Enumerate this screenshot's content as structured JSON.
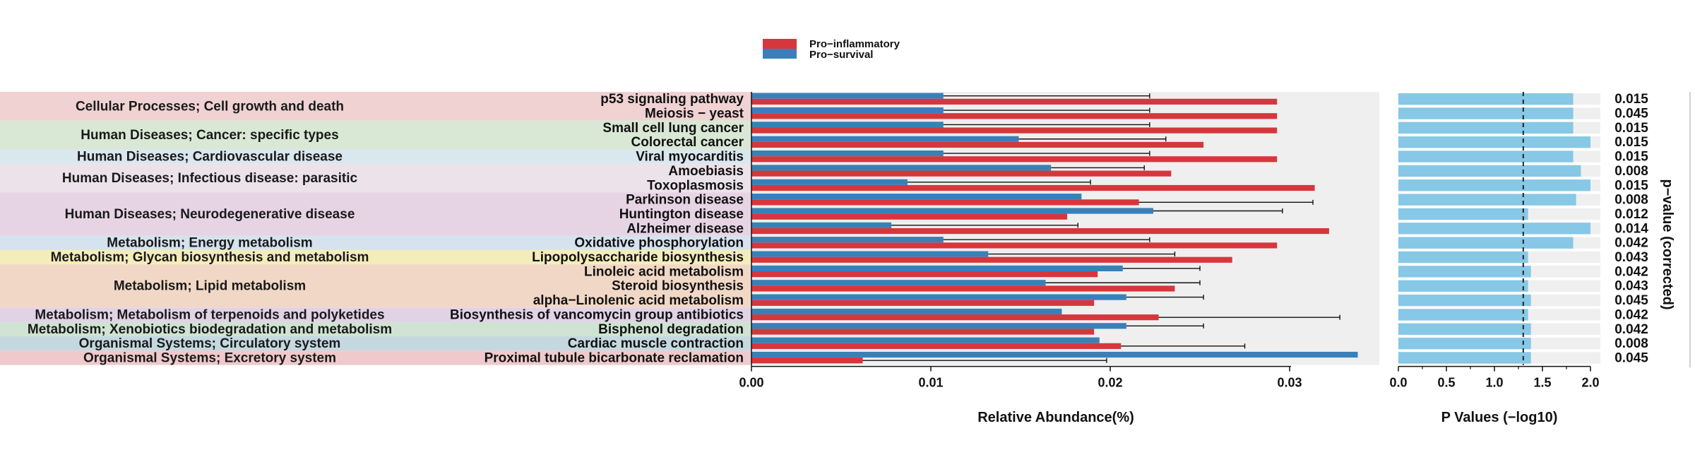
{
  "chart_data": {
    "type": "bar",
    "legend": {
      "placement": "top-center",
      "entries": [
        {
          "name": "Pro−inflammatory",
          "color": "#d6373c"
        },
        {
          "name": "Pro−survival",
          "color": "#3a80b8"
        }
      ]
    },
    "colors": {
      "pro_inflammatory": "#d6373c",
      "pro_survival": "#3a80b8",
      "pvalue_bar": "#86c8e6",
      "panel_background": "#efefef"
    },
    "abundance_axis": {
      "title": "Relative Abundance(%)",
      "range": [
        0,
        0.035
      ],
      "ticks": [
        "0.00",
        "0.01",
        "0.02",
        "0.03"
      ],
      "tick_values": [
        0,
        0.01,
        0.02,
        0.03
      ]
    },
    "pvalue_axis": {
      "title": "P Values (−log10)",
      "range": [
        0,
        2.0
      ],
      "ticks": [
        "0.0",
        "0.5",
        "1.0",
        "1.5",
        "2.0"
      ],
      "tick_values": [
        0,
        0.5,
        1.0,
        1.5,
        2.0
      ],
      "threshold": 1.3
    },
    "right_label": "p−value (corrected)",
    "categories": [
      {
        "name": "Cellular Processes; Cell growth and death",
        "color": "#f0d2d3",
        "rows": [
          0,
          1
        ]
      },
      {
        "name": "Human Diseases; Cancer: specific types",
        "color": "#d9e8d4",
        "rows": [
          2,
          3
        ]
      },
      {
        "name": "Human Diseases; Cardiovascular disease",
        "color": "#d9e7ee",
        "rows": [
          4
        ]
      },
      {
        "name": "Human Diseases; Infectious disease: parasitic",
        "color": "#ece2ea",
        "rows": [
          5,
          6
        ]
      },
      {
        "name": "Human Diseases; Neurodegenerative disease",
        "color": "#e6d4e5",
        "rows": [
          7,
          8,
          9
        ]
      },
      {
        "name": "Metabolism; Energy metabolism",
        "color": "#d6e2ee",
        "rows": [
          10
        ]
      },
      {
        "name": "Metabolism; Glycan biosynthesis and metabolism",
        "color": "#f4edb9",
        "rows": [
          11
        ]
      },
      {
        "name": "Metabolism; Lipid metabolism",
        "color": "#f1d8c6",
        "rows": [
          12,
          13,
          14
        ]
      },
      {
        "name": "Metabolism; Metabolism of terpenoids and polyketides",
        "color": "#e2d2e6",
        "rows": [
          15
        ]
      },
      {
        "name": "Metabolism; Xenobiotics biodegradation and metabolism",
        "color": "#cfe3d2",
        "rows": [
          16
        ]
      },
      {
        "name": "Organismal Systems; Circulatory system",
        "color": "#c5d8e0",
        "rows": [
          17
        ]
      },
      {
        "name": "Organismal Systems; Excretory system",
        "color": "#efc9cc",
        "rows": [
          18
        ]
      }
    ],
    "pathways": [
      {
        "name": "p53 signaling pathway",
        "pro_inflammatory": 0.0293,
        "pro_survival": 0.0107,
        "error": 0.0115,
        "error_on": "pro_survival",
        "neglog10p": 1.82,
        "p_corrected": "0.015"
      },
      {
        "name": "Meiosis − yeast",
        "pro_inflammatory": 0.0293,
        "pro_survival": 0.0107,
        "error": 0.0115,
        "error_on": "pro_survival",
        "neglog10p": 1.82,
        "p_corrected": "0.045"
      },
      {
        "name": "Small cell lung cancer",
        "pro_inflammatory": 0.0293,
        "pro_survival": 0.0107,
        "error": 0.0115,
        "error_on": "pro_survival",
        "neglog10p": 1.82,
        "p_corrected": "0.015"
      },
      {
        "name": "Colorectal cancer",
        "pro_inflammatory": 0.0252,
        "pro_survival": 0.0149,
        "error": 0.0082,
        "error_on": "pro_survival",
        "neglog10p": 2.1,
        "p_corrected": "0.015"
      },
      {
        "name": "Viral myocarditis",
        "pro_inflammatory": 0.0293,
        "pro_survival": 0.0107,
        "error": 0.0115,
        "error_on": "pro_survival",
        "neglog10p": 1.82,
        "p_corrected": "0.015"
      },
      {
        "name": "Amoebiasis",
        "pro_inflammatory": 0.0234,
        "pro_survival": 0.0167,
        "error": 0.0052,
        "error_on": "pro_survival",
        "neglog10p": 1.9,
        "p_corrected": "0.008"
      },
      {
        "name": "Toxoplasmosis",
        "pro_inflammatory": 0.0314,
        "pro_survival": 0.0087,
        "error": 0.0102,
        "error_on": "pro_survival",
        "neglog10p": 2.1,
        "p_corrected": "0.015"
      },
      {
        "name": "Parkinson disease",
        "pro_inflammatory": 0.0216,
        "pro_survival": 0.0184,
        "error": 0.0097,
        "error_on": "pro_inflammatory",
        "neglog10p": 1.85,
        "p_corrected": "0.008"
      },
      {
        "name": "Huntington disease",
        "pro_inflammatory": 0.0176,
        "pro_survival": 0.0224,
        "error": 0.0072,
        "error_on": "pro_survival",
        "neglog10p": 1.35,
        "p_corrected": "0.012"
      },
      {
        "name": "Alzheimer disease",
        "pro_inflammatory": 0.0322,
        "pro_survival": 0.0078,
        "error": 0.0104,
        "error_on": "pro_survival",
        "neglog10p": 2.1,
        "p_corrected": "0.014"
      },
      {
        "name": "Oxidative phosphorylation",
        "pro_inflammatory": 0.0293,
        "pro_survival": 0.0107,
        "error": 0.0115,
        "error_on": "pro_survival",
        "neglog10p": 1.82,
        "p_corrected": "0.042"
      },
      {
        "name": "Lipopolysaccharide biosynthesis",
        "pro_inflammatory": 0.0268,
        "pro_survival": 0.0132,
        "error": 0.0104,
        "error_on": "pro_survival",
        "neglog10p": 1.35,
        "p_corrected": "0.043"
      },
      {
        "name": "Linoleic acid metabolism",
        "pro_inflammatory": 0.0193,
        "pro_survival": 0.0207,
        "error": 0.0043,
        "error_on": "pro_survival",
        "neglog10p": 1.38,
        "p_corrected": "0.042"
      },
      {
        "name": "Steroid biosynthesis",
        "pro_inflammatory": 0.0236,
        "pro_survival": 0.0164,
        "error": 0.0086,
        "error_on": "pro_survival",
        "neglog10p": 1.35,
        "p_corrected": "0.043"
      },
      {
        "name": "alpha−Linolenic acid metabolism",
        "pro_inflammatory": 0.0191,
        "pro_survival": 0.0209,
        "error": 0.0043,
        "error_on": "pro_survival",
        "neglog10p": 1.38,
        "p_corrected": "0.045"
      },
      {
        "name": "Biosynthesis of vancomycin group antibiotics",
        "pro_inflammatory": 0.0227,
        "pro_survival": 0.0173,
        "error": 0.0101,
        "error_on": "pro_inflammatory",
        "neglog10p": 1.35,
        "p_corrected": "0.042"
      },
      {
        "name": "Bisphenol degradation",
        "pro_inflammatory": 0.0191,
        "pro_survival": 0.0209,
        "error": 0.0043,
        "error_on": "pro_survival",
        "neglog10p": 1.38,
        "p_corrected": "0.042"
      },
      {
        "name": "Cardiac muscle contraction",
        "pro_inflammatory": 0.0206,
        "pro_survival": 0.0194,
        "error": 0.0069,
        "error_on": "pro_inflammatory",
        "neglog10p": 1.38,
        "p_corrected": "0.008"
      },
      {
        "name": "Proximal tubule bicarbonate reclamation",
        "pro_inflammatory": 0.0062,
        "pro_survival": 0.0338,
        "error": 0.0136,
        "error_on": "pro_inflammatory",
        "neglog10p": 1.38,
        "p_corrected": "0.045"
      }
    ]
  }
}
